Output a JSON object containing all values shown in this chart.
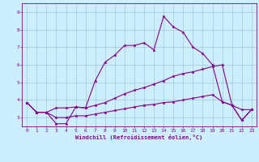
{
  "xlabel": "Windchill (Refroidissement éolien,°C)",
  "bg_color": "#cceeff",
  "line_color": "#880088",
  "grid_color": "#99cccc",
  "x_ticks": [
    0,
    1,
    2,
    3,
    4,
    5,
    6,
    7,
    8,
    9,
    10,
    11,
    12,
    13,
    14,
    15,
    16,
    17,
    18,
    19,
    20,
    21,
    22,
    23
  ],
  "y_ticks": [
    3,
    4,
    5,
    6,
    7,
    8,
    9
  ],
  "ylim": [
    2.5,
    9.5
  ],
  "xlim": [
    -0.5,
    23.5
  ],
  "line1_x": [
    0,
    1,
    2,
    3,
    4,
    5,
    6,
    7,
    8,
    9,
    10,
    11,
    12,
    13,
    14,
    15,
    16,
    17,
    18,
    19,
    20,
    21,
    22,
    23
  ],
  "line1_y": [
    3.85,
    3.3,
    3.3,
    2.65,
    2.65,
    3.6,
    3.55,
    5.1,
    6.15,
    6.55,
    7.1,
    7.1,
    7.25,
    6.85,
    8.75,
    8.15,
    7.85,
    7.0,
    6.65,
    6.0,
    3.9,
    3.7,
    2.85,
    3.45
  ],
  "line2_x": [
    0,
    1,
    2,
    3,
    4,
    5,
    6,
    7,
    8,
    9,
    10,
    11,
    12,
    13,
    14,
    15,
    16,
    17,
    18,
    19,
    20,
    21,
    22,
    23
  ],
  "line2_y": [
    3.85,
    3.3,
    3.3,
    3.55,
    3.55,
    3.6,
    3.55,
    3.7,
    3.85,
    4.1,
    4.35,
    4.55,
    4.7,
    4.9,
    5.1,
    5.35,
    5.5,
    5.6,
    5.75,
    5.9,
    6.0,
    3.7,
    3.45,
    3.45
  ],
  "line3_x": [
    0,
    1,
    2,
    3,
    4,
    5,
    6,
    7,
    8,
    9,
    10,
    11,
    12,
    13,
    14,
    15,
    16,
    17,
    18,
    19,
    20,
    21,
    22,
    23
  ],
  "line3_y": [
    3.85,
    3.3,
    3.3,
    3.0,
    3.0,
    3.1,
    3.1,
    3.2,
    3.3,
    3.4,
    3.5,
    3.6,
    3.7,
    3.75,
    3.85,
    3.9,
    4.0,
    4.1,
    4.2,
    4.3,
    3.9,
    3.7,
    2.85,
    3.45
  ]
}
